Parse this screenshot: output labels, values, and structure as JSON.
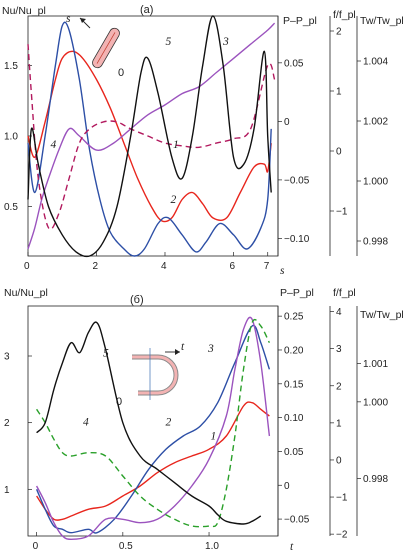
{
  "chart_data": [
    {
      "type": "line",
      "panel_label": "(a)",
      "axes": {
        "x": {
          "label": "s",
          "ticks": [
            "0",
            "2",
            "4",
            "6",
            "7"
          ],
          "range": [
            0,
            7.3
          ]
        },
        "y_left": {
          "label": "Nu/Nu_pl",
          "ticks": [
            "0.5",
            "1.0",
            "1.5"
          ],
          "range": [
            0.15,
            1.85
          ]
        },
        "y_r1": {
          "label": "P–P_pl",
          "ticks": [
            "0.05",
            "0",
            "−0.05",
            "−0.10"
          ],
          "range": [
            -0.115,
            0.09
          ]
        },
        "y_r2": {
          "label": "f/f_pl",
          "ticks": [
            "2",
            "1",
            "0",
            "−1"
          ],
          "range": [
            -1.75,
            2.25
          ]
        },
        "y_r3": {
          "label": "Tw/Tw_pl",
          "ticks": [
            "1.004",
            "1.002",
            "1.000",
            "0.998"
          ],
          "range": [
            0.9975,
            1.0055
          ]
        }
      },
      "curve_labels": [
        "1",
        "2",
        "3",
        "4",
        "5"
      ],
      "series": [
        {
          "label": "1",
          "color": "#e8261d",
          "dash": false,
          "axis": "y_left",
          "x": [
            0,
            0.2,
            0.5,
            0.8,
            1.0,
            1.3,
            1.6,
            2.0,
            2.4,
            2.8,
            3.2,
            3.6,
            3.9,
            4.2,
            4.5,
            4.8,
            5.1,
            5.4,
            5.8,
            6.2,
            6.6,
            6.9,
            7.0,
            7.1
          ],
          "y": [
            1.0,
            0.85,
            1.1,
            1.4,
            1.55,
            1.6,
            1.55,
            1.4,
            1.2,
            0.95,
            0.7,
            0.5,
            0.4,
            0.42,
            0.55,
            0.6,
            0.52,
            0.42,
            0.42,
            0.6,
            0.78,
            0.8,
            0.75,
            0.95
          ]
        },
        {
          "label": "2",
          "color": "#2d4fa6",
          "dash": false,
          "axis": "y_left",
          "x": [
            0,
            0.2,
            0.5,
            0.8,
            1.0,
            1.2,
            1.5,
            1.8,
            2.1,
            2.4,
            2.8,
            3.1,
            3.4,
            3.8,
            4.1,
            4.5,
            4.9,
            5.2,
            5.6,
            6.0,
            6.4,
            6.8,
            7.0,
            7.1
          ],
          "y": [
            0.95,
            0.6,
            1.0,
            1.5,
            1.78,
            1.75,
            1.4,
            0.9,
            0.55,
            0.32,
            0.2,
            0.15,
            0.2,
            0.38,
            0.42,
            0.3,
            0.18,
            0.25,
            0.38,
            0.3,
            0.2,
            0.35,
            0.55,
            1.05
          ]
        },
        {
          "label": "3",
          "color": "#9b53be",
          "dash": false,
          "axis": "y_left",
          "x": [
            0,
            0.2,
            0.4,
            0.6,
            0.9,
            1.2,
            1.5,
            2.0,
            2.5,
            3.0,
            3.5,
            4.0,
            4.5,
            5.0,
            5.5,
            6.0,
            6.5,
            7.0,
            7.2
          ],
          "y": [
            0.2,
            0.35,
            0.55,
            0.7,
            0.9,
            1.05,
            1.0,
            0.9,
            0.95,
            1.05,
            1.15,
            1.22,
            1.3,
            1.35,
            1.45,
            1.55,
            1.65,
            1.75,
            1.8
          ]
        },
        {
          "label": "4",
          "color": "#b2195e",
          "dash": true,
          "axis": "y_left",
          "x": [
            0,
            0.1,
            0.3,
            0.6,
            0.9,
            1.2,
            1.5,
            1.8,
            2.2,
            2.6,
            3.0,
            3.5,
            4.0,
            4.5,
            5.0,
            5.5,
            6.0,
            6.5,
            7.0,
            7.2
          ],
          "y": [
            1.65,
            1.3,
            0.7,
            0.35,
            0.45,
            0.7,
            0.95,
            1.05,
            1.1,
            1.1,
            1.05,
            1.0,
            0.95,
            0.93,
            0.92,
            0.95,
            0.98,
            1.05,
            1.5,
            1.4
          ]
        },
        {
          "label": "5",
          "color": "#111111",
          "dash": false,
          "axis": "y_left",
          "x": [
            0,
            0.1,
            0.3,
            0.6,
            1.0,
            1.4,
            1.8,
            2.2,
            2.6,
            3.0,
            3.3,
            3.5,
            3.8,
            4.2,
            4.5,
            4.8,
            5.1,
            5.4,
            5.7,
            6.0,
            6.3,
            6.6,
            6.9,
            7.0,
            7.1
          ],
          "y": [
            0.55,
            1.05,
            0.8,
            0.5,
            0.3,
            0.18,
            0.15,
            0.25,
            0.5,
            1.0,
            1.45,
            1.55,
            1.3,
            0.85,
            0.7,
            1.0,
            1.5,
            1.85,
            1.5,
            0.85,
            0.8,
            1.05,
            1.6,
            1.0,
            0.6
          ]
        }
      ]
    },
    {
      "type": "line",
      "panel_label": "(б)",
      "axes": {
        "x": {
          "label": "t",
          "ticks": [
            "0",
            "0.5",
            "1.0"
          ],
          "range": [
            -0.05,
            1.4
          ]
        },
        "y_left": {
          "label": "Nu/Nu_pl",
          "ticks": [
            "1",
            "2",
            "3"
          ],
          "range": [
            0.3,
            3.75
          ]
        },
        "y_r1": {
          "label": "P–P_pl",
          "ticks": [
            "0.25",
            "0.20",
            "0.15",
            "0.10",
            "0.05",
            "0",
            "−0.05"
          ],
          "range": [
            -0.075,
            0.265
          ]
        },
        "y_r2": {
          "label": "f/f_pl",
          "ticks": [
            "4",
            "3",
            "2",
            "1",
            "0",
            "−1",
            "−2"
          ],
          "range": [
            -2.05,
            4.15
          ]
        },
        "y_r3": {
          "label": "Tw/Tw_pl",
          "ticks": [
            "1.001",
            "1.000",
            "0.998"
          ],
          "range": [
            0.9965,
            1.0025
          ]
        }
      },
      "curve_labels": [
        "1",
        "2",
        "3",
        "4",
        "5"
      ],
      "series": [
        {
          "label": "1",
          "color": "#e8261d",
          "dash": false,
          "axis": "y_left",
          "x": [
            0,
            0.05,
            0.1,
            0.15,
            0.2,
            0.3,
            0.4,
            0.5,
            0.6,
            0.7,
            0.8,
            0.9,
            1.0,
            1.1,
            1.2,
            1.25,
            1.3,
            1.35
          ],
          "y": [
            0.9,
            0.7,
            0.55,
            0.55,
            0.6,
            0.7,
            0.75,
            0.9,
            1.05,
            1.25,
            1.4,
            1.5,
            1.6,
            1.8,
            2.25,
            2.3,
            2.2,
            2.1
          ]
        },
        {
          "label": "2",
          "color": "#2d4fa6",
          "dash": false,
          "axis": "y_left",
          "x": [
            0,
            0.05,
            0.1,
            0.15,
            0.2,
            0.3,
            0.35,
            0.45,
            0.55,
            0.65,
            0.75,
            0.85,
            0.95,
            1.05,
            1.15,
            1.25,
            1.3,
            1.35
          ],
          "y": [
            1.0,
            0.7,
            0.45,
            0.4,
            0.35,
            0.4,
            0.35,
            0.55,
            0.9,
            1.3,
            1.6,
            1.8,
            1.95,
            2.3,
            2.9,
            3.45,
            3.2,
            2.8
          ]
        },
        {
          "label": "3",
          "color": "#9b53be",
          "dash": false,
          "axis": "y_left",
          "x": [
            0,
            0.05,
            0.1,
            0.15,
            0.2,
            0.3,
            0.4,
            0.5,
            0.6,
            0.7,
            0.8,
            0.9,
            1.0,
            1.1,
            1.15,
            1.2,
            1.25,
            1.3,
            1.35
          ],
          "y": [
            1.05,
            0.8,
            0.5,
            0.3,
            0.25,
            0.3,
            0.55,
            0.55,
            0.5,
            0.55,
            0.75,
            1.05,
            1.45,
            2.1,
            2.8,
            3.4,
            3.55,
            2.9,
            1.8
          ]
        },
        {
          "label": "4",
          "color": "#2aa02a",
          "dash": true,
          "axis": "y_left",
          "x": [
            0,
            0.05,
            0.1,
            0.15,
            0.2,
            0.3,
            0.4,
            0.5,
            0.6,
            0.7,
            0.8,
            0.9,
            1.0,
            1.05,
            1.1,
            1.15,
            1.2,
            1.25,
            1.3,
            1.35
          ],
          "y": [
            2.2,
            2.0,
            1.75,
            1.55,
            1.5,
            1.55,
            1.5,
            1.2,
            0.9,
            0.7,
            0.55,
            0.45,
            0.45,
            0.5,
            1.0,
            1.8,
            2.8,
            3.5,
            3.45,
            3.2
          ]
        },
        {
          "label": "5",
          "color": "#111111",
          "dash": false,
          "axis": "y_left",
          "x": [
            0,
            0.05,
            0.1,
            0.15,
            0.2,
            0.25,
            0.3,
            0.35,
            0.4,
            0.5,
            0.6,
            0.7,
            0.8,
            0.9,
            1.0,
            1.05,
            1.1,
            1.2,
            1.25,
            1.3
          ],
          "y": [
            1.85,
            2.0,
            2.5,
            2.9,
            3.2,
            3.05,
            3.35,
            3.5,
            3.1,
            2.0,
            1.5,
            1.3,
            1.1,
            0.9,
            0.75,
            0.62,
            0.52,
            0.48,
            0.52,
            0.6
          ]
        }
      ]
    }
  ]
}
